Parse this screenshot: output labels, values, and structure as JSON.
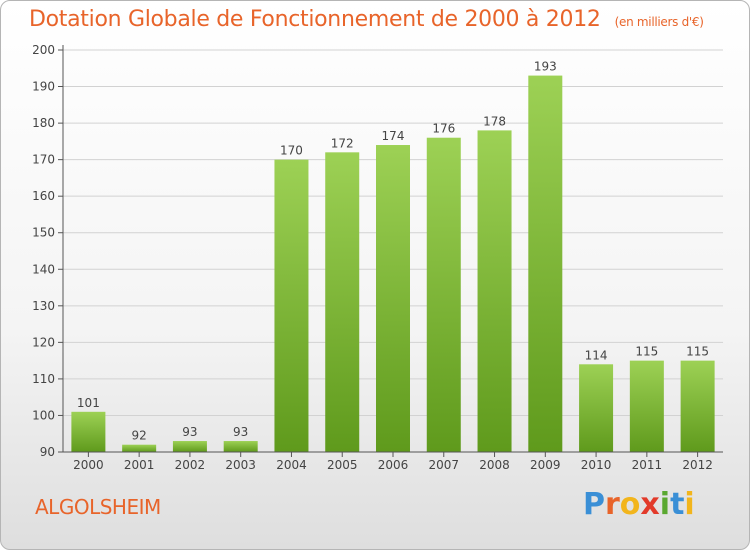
{
  "header": {
    "title": "Dotation Globale de Fonctionnement de 2000 à 2012",
    "unit": "(en milliers d'€)"
  },
  "commune": "ALGOLSHEIM",
  "logo": {
    "letters": [
      "P",
      "r",
      "o",
      "x",
      "i",
      "t",
      "i"
    ],
    "colors": [
      "#3a8fd6",
      "#e8642a",
      "#f2b51c",
      "#e23a2a",
      "#5aa830",
      "#3a8fd6",
      "#f2b51c"
    ]
  },
  "chart_data": {
    "type": "bar",
    "categories": [
      "2000",
      "2001",
      "2002",
      "2003",
      "2004",
      "2005",
      "2006",
      "2007",
      "2008",
      "2009",
      "2010",
      "2011",
      "2012"
    ],
    "values": [
      101,
      92,
      93,
      93,
      170,
      172,
      174,
      176,
      178,
      193,
      114,
      115,
      115
    ],
    "title": "Dotation Globale de Fonctionnement de 2000 à 2012",
    "xlabel": "",
    "ylabel": "",
    "ylim": [
      90,
      200
    ],
    "yticks": [
      90,
      100,
      110,
      120,
      130,
      140,
      150,
      160,
      170,
      180,
      190,
      200
    ],
    "grid": true,
    "bar_color_top": "#9dd155",
    "bar_color_bottom": "#5f9a1c"
  }
}
